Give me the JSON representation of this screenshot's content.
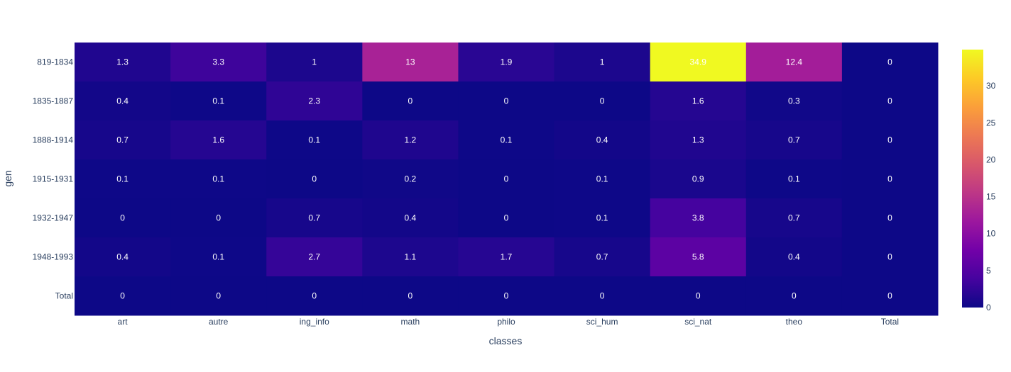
{
  "chart_data": {
    "type": "heatmap",
    "xlabel": "classes",
    "ylabel": "gen",
    "x": [
      "art",
      "autre",
      "ing_info",
      "math",
      "philo",
      "sci_hum",
      "sci_nat",
      "theo",
      "Total"
    ],
    "y": [
      "819-1834",
      "1835-1887",
      "1888-1914",
      "1915-1931",
      "1932-1947",
      "1948-1993",
      "Total"
    ],
    "z": [
      [
        1.3,
        3.3,
        1,
        13,
        1.9,
        1,
        34.9,
        12.4,
        0
      ],
      [
        0.4,
        0.1,
        2.3,
        0,
        0,
        0,
        1.6,
        0.3,
        0
      ],
      [
        0.7,
        1.6,
        0.1,
        1.2,
        0.1,
        0.4,
        1.3,
        0.7,
        0
      ],
      [
        0.1,
        0.1,
        0,
        0.2,
        0,
        0.1,
        0.9,
        0.1,
        0
      ],
      [
        0,
        0,
        0.7,
        0.4,
        0,
        0.1,
        3.8,
        0.7,
        0
      ],
      [
        0.4,
        0.1,
        2.7,
        1.1,
        1.7,
        0.7,
        5.8,
        0.4,
        0
      ],
      [
        0,
        0,
        0,
        0,
        0,
        0,
        0,
        0,
        0
      ]
    ],
    "colorscale": [
      "#0d0887",
      "#46039f",
      "#7201a8",
      "#9c179e",
      "#bd3786",
      "#d8576b",
      "#ed7953",
      "#fb9f3a",
      "#fdca26",
      "#f0f921"
    ],
    "zmin": 0,
    "zmax": 34.9,
    "colorbar_ticks": [
      0,
      5,
      10,
      15,
      20,
      25,
      30
    ]
  }
}
